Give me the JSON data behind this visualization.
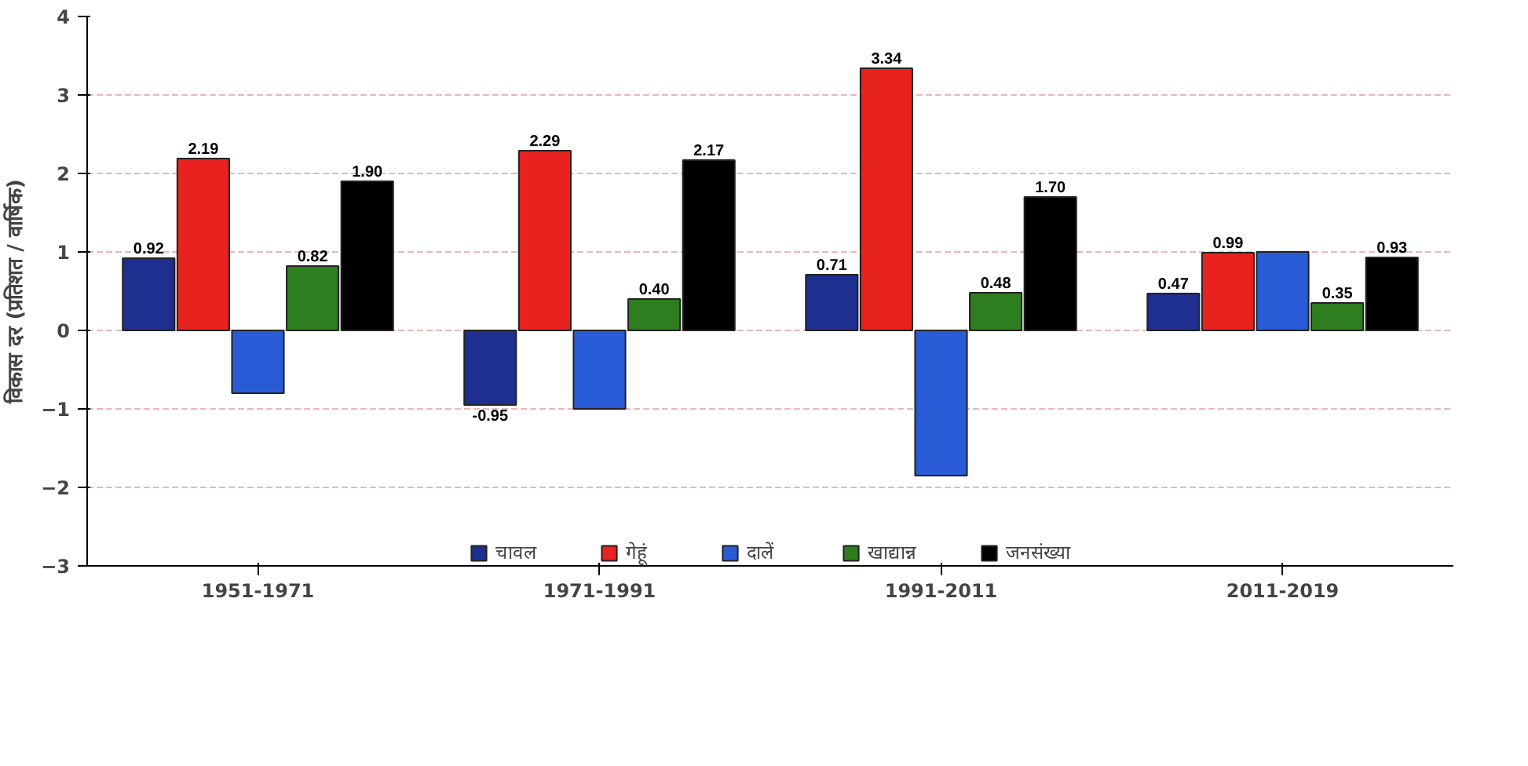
{
  "chart_data": {
    "type": "bar",
    "ylabel": "विकास दर (प्रतिशत / वार्षिक)",
    "categories": [
      "1951-1971",
      "1971-1991",
      "1991-2011",
      "2011-2019"
    ],
    "series": [
      {
        "name": "चावल",
        "color": "#1f2f8f",
        "values": [
          0.92,
          -0.95,
          0.71,
          0.47
        ],
        "value_labels": [
          "0.92",
          "-0.95",
          "0.71",
          "0.47"
        ]
      },
      {
        "name": "गेहूं",
        "color": "#e8231f",
        "values": [
          2.19,
          2.29,
          3.34,
          0.99
        ],
        "value_labels": [
          "2.19",
          "2.29",
          "3.34",
          "0.99"
        ]
      },
      {
        "name": "दालें",
        "color": "#2a5bd7",
        "values": [
          -0.8,
          -1.0,
          -1.85,
          1.0
        ],
        "value_labels": [
          null,
          null,
          null,
          null
        ]
      },
      {
        "name": "खाद्यान्न",
        "color": "#2e7d1e",
        "values": [
          0.82,
          0.4,
          0.48,
          0.35
        ],
        "value_labels": [
          "0.82",
          "0.40",
          "0.48",
          "0.35"
        ]
      },
      {
        "name": "जनसंख्या",
        "color": "#000000",
        "values": [
          1.9,
          2.17,
          1.7,
          0.93
        ],
        "value_labels": [
          "1.90",
          "2.17",
          "1.70",
          "0.93"
        ]
      }
    ],
    "ylim": [
      -3,
      4
    ],
    "yticks": [
      -3,
      -2,
      -1,
      0,
      1,
      2,
      3,
      4
    ],
    "grid": "y",
    "legend": "bottom"
  }
}
